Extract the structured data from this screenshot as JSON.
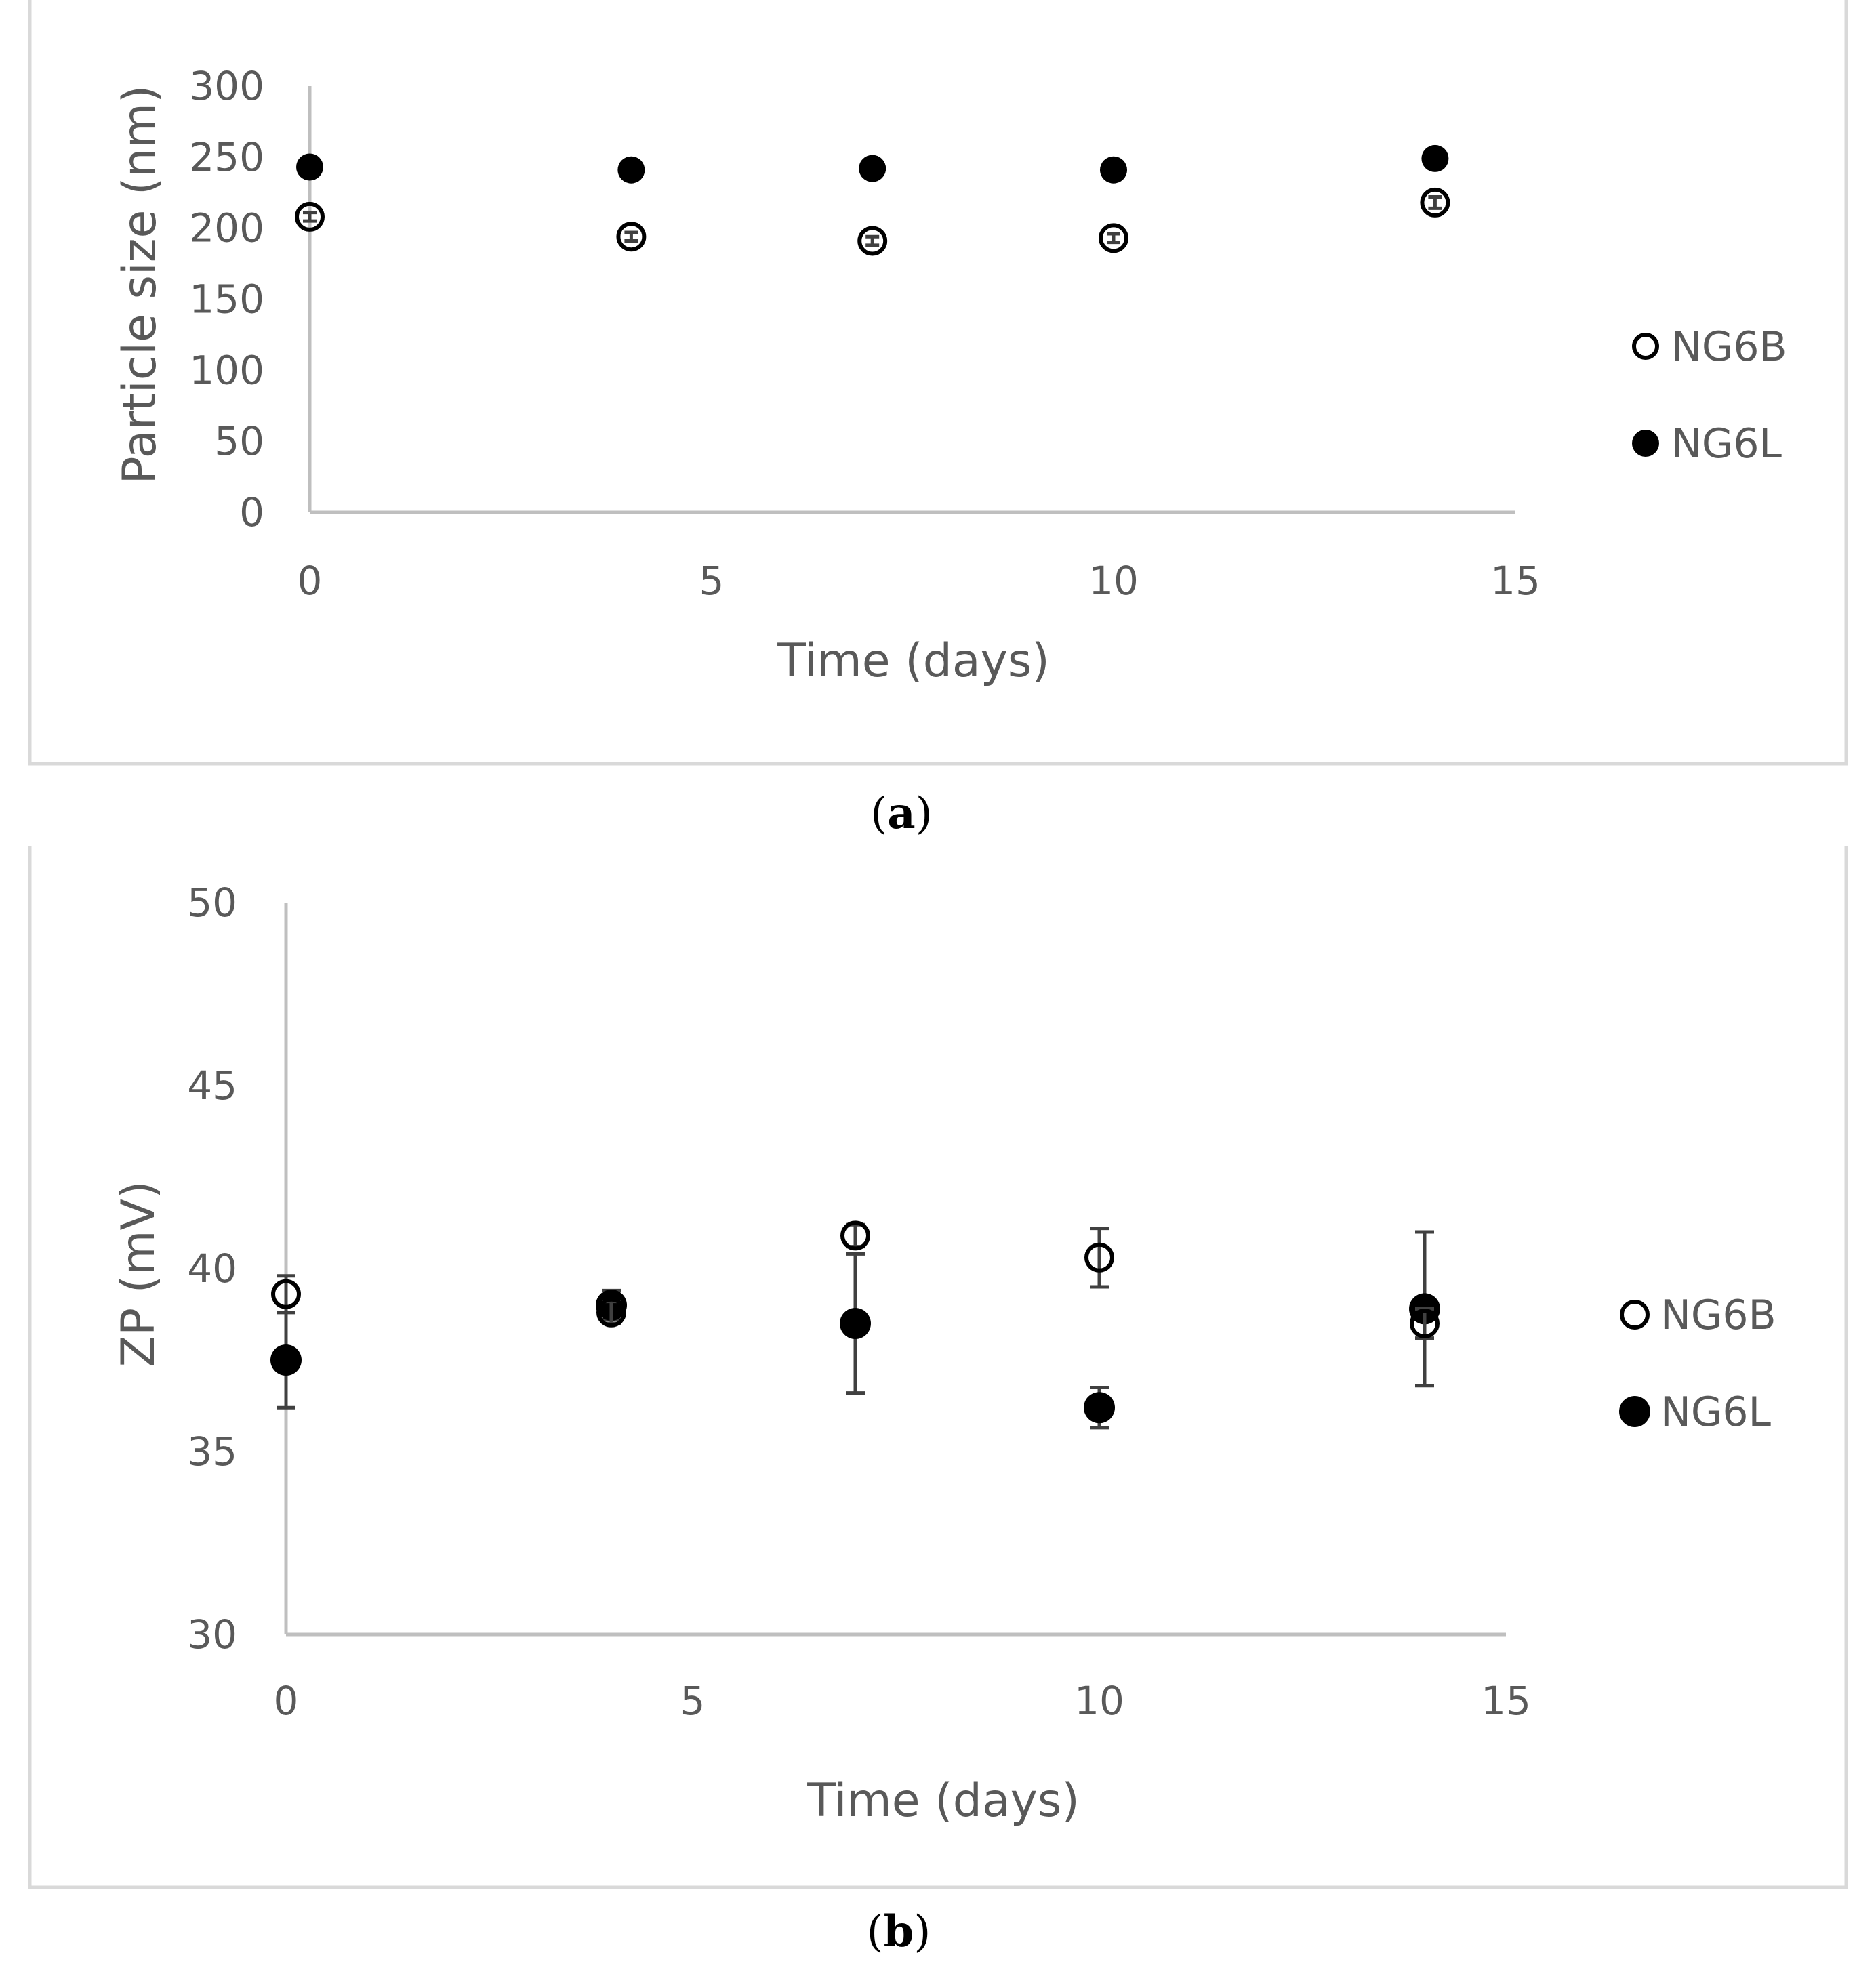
{
  "colors": {
    "axis": "#bfbfbf",
    "frame": "#d9d9d9",
    "text": "#595959",
    "marker": "#000000",
    "errorbar": "#404040"
  },
  "chart_data": [
    {
      "type": "scatter",
      "panel": "a",
      "caption_letter": "a",
      "xlabel": "Time (days)",
      "ylabel": "Particle size (nm)",
      "xlim": [
        0,
        15
      ],
      "ylim": [
        0,
        300
      ],
      "xticks": [
        "0",
        "5",
        "10",
        "15"
      ],
      "xtick_values": [
        0,
        5,
        10,
        15
      ],
      "yticks": [
        "0",
        "50",
        "100",
        "150",
        "200",
        "250",
        "300"
      ],
      "ytick_values": [
        0,
        50,
        100,
        150,
        200,
        250,
        300
      ],
      "legend_position": "right",
      "series": [
        {
          "name": "NG6B",
          "marker": "open-circle",
          "x": [
            0,
            4,
            7,
            10,
            14
          ],
          "y": [
            208,
            194,
            191,
            193,
            218
          ],
          "err": [
            3,
            3,
            3,
            3,
            4
          ]
        },
        {
          "name": "NG6L",
          "marker": "filled-circle",
          "x": [
            0,
            4,
            7,
            10,
            14
          ],
          "y": [
            243,
            241,
            242,
            241,
            249
          ],
          "err": [
            2,
            2,
            2,
            2,
            5
          ]
        }
      ]
    },
    {
      "type": "scatter",
      "panel": "b",
      "caption_letter": "b",
      "xlabel": "Time (days)",
      "ylabel": "ZP (mV)",
      "xlim": [
        0,
        15
      ],
      "ylim": [
        30,
        50
      ],
      "xticks": [
        "0",
        "5",
        "10",
        "15"
      ],
      "xtick_values": [
        0,
        5,
        10,
        15
      ],
      "yticks": [
        "30",
        "35",
        "40",
        "45",
        "50"
      ],
      "ytick_values": [
        30,
        35,
        40,
        45,
        50
      ],
      "legend_position": "right",
      "series": [
        {
          "name": "NG6B",
          "marker": "open-circle",
          "x": [
            0,
            4,
            7,
            10,
            14
          ],
          "y": [
            39.3,
            38.8,
            40.9,
            40.3,
            38.5
          ],
          "err": [
            0.5,
            0.3,
            0.3,
            0.8,
            0.4
          ]
        },
        {
          "name": "NG6L",
          "marker": "filled-circle",
          "x": [
            0,
            4,
            7,
            10,
            14
          ],
          "y": [
            37.5,
            39.0,
            38.5,
            36.2,
            38.9
          ],
          "err": [
            1.3,
            0.4,
            1.9,
            0.55,
            2.1
          ]
        }
      ]
    }
  ]
}
